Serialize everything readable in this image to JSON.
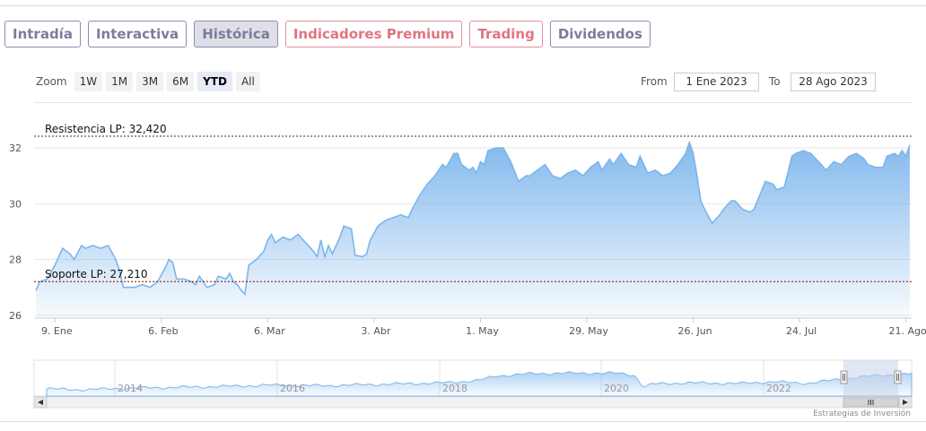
{
  "tabs": [
    {
      "label": "Intradía",
      "style": "normal"
    },
    {
      "label": "Interactiva",
      "style": "normal"
    },
    {
      "label": "Histórica",
      "style": "active"
    },
    {
      "label": "Indicadores Premium",
      "style": "red"
    },
    {
      "label": "Trading",
      "style": "red"
    },
    {
      "label": "Dividendos",
      "style": "normal"
    }
  ],
  "zoom": {
    "label": "Zoom",
    "buttons": [
      "1W",
      "1M",
      "3M",
      "6M",
      "YTD",
      "All"
    ],
    "selected": "YTD"
  },
  "range": {
    "from_label": "From",
    "from_value": "1 Ene 2023",
    "to_label": "To",
    "to_value": "28 Ago 2023"
  },
  "credit": "Estrategias de Inversión",
  "colors": {
    "line": "#7cb5ec",
    "fill_top": "#7cb5ec",
    "fill_bottom": "#ffffff",
    "resistance": "#333333",
    "support": "#8b0000",
    "navigator_mask": "#c7d3ea"
  },
  "chart_data": {
    "type": "area",
    "x_tick_labels": [
      "9. Ene",
      "6. Feb",
      "6. Mar",
      "3. Abr",
      "1. May",
      "29. May",
      "26. Jun",
      "24. Jul",
      "21. Ago"
    ],
    "y_tick_labels": [
      "26",
      "28",
      "30",
      "32"
    ],
    "ylim": [
      25.9,
      32.9
    ],
    "grid": true,
    "plot_lines": [
      {
        "label": "Resistencia LP: 32,420",
        "value": 32.42,
        "style": "dashed"
      },
      {
        "label": "Soporte LP: 27,210",
        "value": 27.21,
        "style": "dashed"
      }
    ],
    "series": [
      {
        "x_unit": "days since 1 Ene 2023",
        "points": [
          [
            3,
            26.9
          ],
          [
            4,
            27.2
          ],
          [
            6,
            27.3
          ],
          [
            8,
            27.8
          ],
          [
            10,
            28.4
          ],
          [
            12,
            28.2
          ],
          [
            13,
            28.0
          ],
          [
            15,
            28.5
          ],
          [
            16,
            28.4
          ],
          [
            18,
            28.5
          ],
          [
            20,
            28.4
          ],
          [
            22,
            28.5
          ],
          [
            24,
            28.0
          ],
          [
            25,
            27.6
          ],
          [
            26,
            27.0
          ],
          [
            29,
            27.0
          ],
          [
            31,
            27.1
          ],
          [
            33,
            27.0
          ],
          [
            35,
            27.2
          ],
          [
            37,
            27.7
          ],
          [
            38,
            28.0
          ],
          [
            39,
            27.9
          ],
          [
            40,
            27.3
          ],
          [
            42,
            27.3
          ],
          [
            44,
            27.2
          ],
          [
            45,
            27.1
          ],
          [
            46,
            27.4
          ],
          [
            47,
            27.2
          ],
          [
            48,
            27.0
          ],
          [
            50,
            27.1
          ],
          [
            51,
            27.4
          ],
          [
            53,
            27.3
          ],
          [
            54,
            27.5
          ],
          [
            55,
            27.2
          ],
          [
            56,
            27.1
          ],
          [
            57,
            26.9
          ],
          [
            58,
            26.75
          ],
          [
            59,
            27.8
          ],
          [
            61,
            28.0
          ],
          [
            63,
            28.3
          ],
          [
            64,
            28.7
          ],
          [
            65,
            28.9
          ],
          [
            66,
            28.6
          ],
          [
            68,
            28.8
          ],
          [
            70,
            28.7
          ],
          [
            72,
            28.9
          ],
          [
            74,
            28.6
          ],
          [
            76,
            28.3
          ],
          [
            77,
            28.1
          ],
          [
            78,
            28.7
          ],
          [
            79,
            28.1
          ],
          [
            80,
            28.5
          ],
          [
            81,
            28.2
          ],
          [
            82,
            28.5
          ],
          [
            83,
            28.8
          ],
          [
            84,
            29.2
          ],
          [
            86,
            29.1
          ],
          [
            87,
            28.15
          ],
          [
            89,
            28.1
          ],
          [
            90,
            28.2
          ],
          [
            91,
            28.7
          ],
          [
            93,
            29.2
          ],
          [
            95,
            29.4
          ],
          [
            97,
            29.5
          ],
          [
            99,
            29.6
          ],
          [
            101,
            29.5
          ],
          [
            102,
            29.8
          ],
          [
            104,
            30.3
          ],
          [
            106,
            30.7
          ],
          [
            108,
            31.0
          ],
          [
            110,
            31.4
          ],
          [
            111,
            31.3
          ],
          [
            113,
            31.8
          ],
          [
            114,
            31.8
          ],
          [
            115,
            31.4
          ],
          [
            117,
            31.2
          ],
          [
            118,
            31.3
          ],
          [
            119,
            31.1
          ],
          [
            120,
            31.5
          ],
          [
            121,
            31.4
          ],
          [
            122,
            31.9
          ],
          [
            124,
            32.0
          ],
          [
            126,
            32.0
          ],
          [
            128,
            31.5
          ],
          [
            130,
            30.8
          ],
          [
            132,
            31.0
          ],
          [
            133,
            31.0
          ],
          [
            135,
            31.2
          ],
          [
            137,
            31.4
          ],
          [
            139,
            31.0
          ],
          [
            141,
            30.9
          ],
          [
            143,
            31.1
          ],
          [
            145,
            31.2
          ],
          [
            147,
            31.0
          ],
          [
            149,
            31.3
          ],
          [
            151,
            31.5
          ],
          [
            152,
            31.2
          ],
          [
            154,
            31.6
          ],
          [
            155,
            31.4
          ],
          [
            157,
            31.8
          ],
          [
            159,
            31.4
          ],
          [
            161,
            31.3
          ],
          [
            162,
            31.7
          ],
          [
            164,
            31.1
          ],
          [
            166,
            31.2
          ],
          [
            168,
            31.0
          ],
          [
            170,
            31.1
          ],
          [
            172,
            31.4
          ],
          [
            174,
            31.8
          ],
          [
            175,
            32.2
          ],
          [
            176,
            31.8
          ],
          [
            177,
            31.0
          ],
          [
            178,
            30.1
          ],
          [
            179,
            29.8
          ],
          [
            181,
            29.3
          ],
          [
            183,
            29.6
          ],
          [
            184,
            29.8
          ],
          [
            186,
            30.1
          ],
          [
            187,
            30.1
          ],
          [
            189,
            29.8
          ],
          [
            191,
            29.7
          ],
          [
            192,
            29.8
          ],
          [
            195,
            30.8
          ],
          [
            197,
            30.7
          ],
          [
            198,
            30.5
          ],
          [
            200,
            30.6
          ],
          [
            202,
            31.7
          ],
          [
            203,
            31.8
          ],
          [
            205,
            31.9
          ],
          [
            207,
            31.8
          ],
          [
            209,
            31.5
          ],
          [
            211,
            31.2
          ],
          [
            213,
            31.5
          ],
          [
            215,
            31.4
          ],
          [
            217,
            31.7
          ],
          [
            219,
            31.8
          ],
          [
            221,
            31.6
          ],
          [
            222,
            31.4
          ],
          [
            224,
            31.3
          ],
          [
            226,
            31.3
          ],
          [
            227,
            31.7
          ],
          [
            229,
            31.8
          ],
          [
            230,
            31.7
          ],
          [
            231,
            31.9
          ],
          [
            232,
            31.7
          ],
          [
            233,
            32.1
          ]
        ]
      }
    ],
    "navigator": {
      "x_tick_labels": [
        "2014",
        "2016",
        "2018",
        "2020",
        "2022"
      ]
    }
  }
}
